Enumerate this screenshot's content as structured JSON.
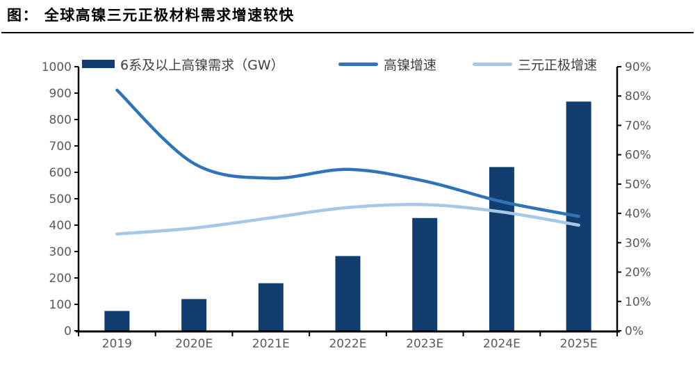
{
  "header": {
    "title": "图： 全球高镍三元正极材料需求增速较快"
  },
  "chart_data": {
    "type": "combo",
    "title": "全球高镍三元正极材料需求增速较快",
    "categories": [
      "2019",
      "2020E",
      "2021E",
      "2022E",
      "2023E",
      "2024E",
      "2025E"
    ],
    "series": [
      {
        "name": "6系及以上高镍需求（GW）",
        "type": "bar",
        "axis": "left",
        "color": "#113E6E",
        "values": [
          75,
          120,
          180,
          283,
          427,
          620,
          868
        ]
      },
      {
        "name": "高镍增速",
        "type": "line",
        "axis": "right",
        "color": "#2F74B8",
        "values": [
          82,
          57,
          52,
          55,
          51,
          44,
          39
        ]
      },
      {
        "name": "三元正极增速",
        "type": "line",
        "axis": "right",
        "color": "#A6C8E8",
        "values": [
          33,
          35,
          38.5,
          42,
          43,
          40.5,
          36
        ]
      }
    ],
    "left_axis": {
      "min": 0,
      "max": 1000,
      "step": 100,
      "labels": [
        "0",
        "100",
        "200",
        "300",
        "400",
        "500",
        "600",
        "700",
        "800",
        "900",
        "1000"
      ]
    },
    "right_axis": {
      "min": 0,
      "max": 90,
      "step": 10,
      "labels": [
        "0%",
        "10%",
        "20%",
        "30%",
        "40%",
        "50%",
        "60%",
        "70%",
        "80%",
        "90%"
      ]
    },
    "grid": false,
    "legend_position": "top"
  },
  "colors": {
    "background": "#FFFFFF",
    "axis_line": "#000000",
    "tick_label": "#595959",
    "legend_text": "#3F3F3F",
    "title_text": "#000000"
  }
}
